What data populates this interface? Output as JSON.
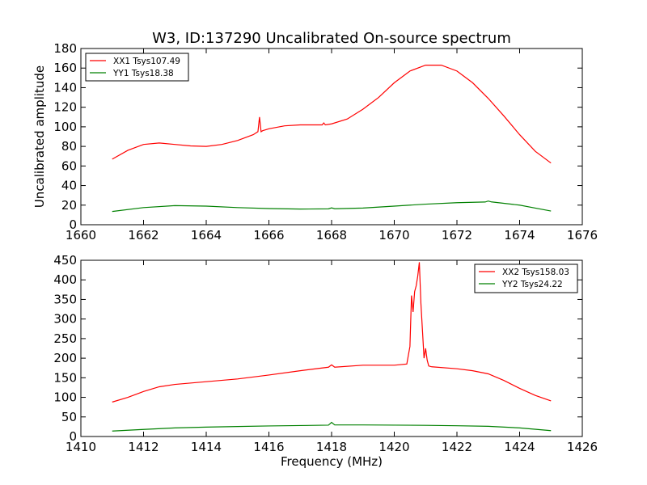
{
  "figure": {
    "title": "W3, ID:137290 Uncalibrated On-source spectrum",
    "ylabel": "Uncalibrated amplitude",
    "xlabel": "Frequency (MHz)",
    "colors": {
      "red": "#ff0000",
      "green": "#008000"
    }
  },
  "chart_data": [
    {
      "type": "line",
      "xlim": [
        1660,
        1676
      ],
      "ylim": [
        0,
        180
      ],
      "x_ticks": [
        1660,
        1662,
        1664,
        1666,
        1668,
        1670,
        1672,
        1674,
        1676
      ],
      "y_ticks": [
        0,
        20,
        40,
        60,
        80,
        100,
        120,
        140,
        160,
        180
      ],
      "legend_position": "top-left",
      "series": [
        {
          "name": "XX1 Tsys107.49",
          "color": "#ff0000",
          "x": [
            1661.0,
            1661.5,
            1662.0,
            1662.5,
            1663.0,
            1663.5,
            1664.0,
            1664.5,
            1665.0,
            1665.5,
            1665.65,
            1665.7,
            1665.75,
            1665.8,
            1666.0,
            1666.5,
            1667.0,
            1667.5,
            1667.7,
            1667.75,
            1667.8,
            1668.0,
            1668.5,
            1669.0,
            1669.5,
            1670.0,
            1670.5,
            1671.0,
            1671.5,
            1672.0,
            1672.5,
            1673.0,
            1673.5,
            1674.0,
            1674.5,
            1675.0
          ],
          "y": [
            67,
            76,
            82,
            83.5,
            82,
            80.5,
            80,
            82,
            86,
            92,
            95,
            110,
            95,
            96,
            98,
            101,
            102,
            102,
            102,
            104,
            102,
            103,
            108,
            118,
            130,
            145,
            157,
            163,
            163,
            157,
            145,
            129,
            111,
            92,
            75,
            63
          ]
        },
        {
          "name": "YY1 Tsys18.38",
          "color": "#008000",
          "x": [
            1661.0,
            1662.0,
            1663.0,
            1664.0,
            1665.0,
            1666.0,
            1667.0,
            1667.9,
            1668.0,
            1668.1,
            1669.0,
            1670.0,
            1671.0,
            1672.0,
            1672.9,
            1673.0,
            1673.1,
            1674.0,
            1675.0
          ],
          "y": [
            13.5,
            17.5,
            19.5,
            19,
            17.5,
            16.5,
            16,
            16.2,
            17.2,
            16.3,
            17,
            19,
            21,
            22.5,
            23.2,
            24.2,
            23.3,
            20,
            14
          ]
        }
      ]
    },
    {
      "type": "line",
      "xlim": [
        1410,
        1426
      ],
      "ylim": [
        0,
        450
      ],
      "x_ticks": [
        1410,
        1412,
        1414,
        1416,
        1418,
        1420,
        1422,
        1424,
        1426
      ],
      "y_ticks": [
        0,
        50,
        100,
        150,
        200,
        250,
        300,
        350,
        400,
        450
      ],
      "legend_position": "top-right",
      "series": [
        {
          "name": "XX2 Tsys158.03",
          "color": "#ff0000",
          "x": [
            1411.0,
            1411.5,
            1412.0,
            1412.5,
            1413.0,
            1414.0,
            1415.0,
            1416.0,
            1417.0,
            1417.9,
            1418.0,
            1418.1,
            1419.0,
            1420.0,
            1420.4,
            1420.5,
            1420.55,
            1420.6,
            1420.65,
            1420.7,
            1420.75,
            1420.8,
            1420.85,
            1420.9,
            1420.95,
            1421.0,
            1421.05,
            1421.1,
            1421.2,
            1422.0,
            1422.5,
            1423.0,
            1423.5,
            1424.0,
            1424.5,
            1425.0
          ],
          "y": [
            88,
            100,
            115,
            127,
            133,
            140,
            147,
            157,
            168,
            177,
            183,
            177,
            182,
            182,
            185,
            230,
            360,
            318,
            370,
            385,
            410,
            445,
            340,
            270,
            200,
            225,
            195,
            180,
            178,
            173,
            168,
            160,
            143,
            123,
            105,
            91
          ]
        },
        {
          "name": "YY2 Tsys24.22",
          "color": "#008000",
          "x": [
            1411.0,
            1412.0,
            1413.0,
            1414.0,
            1415.0,
            1416.0,
            1417.0,
            1417.9,
            1418.0,
            1418.1,
            1419.0,
            1420.0,
            1421.0,
            1422.0,
            1423.0,
            1424.0,
            1425.0
          ],
          "y": [
            14,
            18,
            22,
            24,
            25.5,
            27,
            28,
            29,
            36,
            29.5,
            29.5,
            29,
            28.5,
            27.5,
            26,
            22,
            15
          ]
        }
      ]
    }
  ]
}
